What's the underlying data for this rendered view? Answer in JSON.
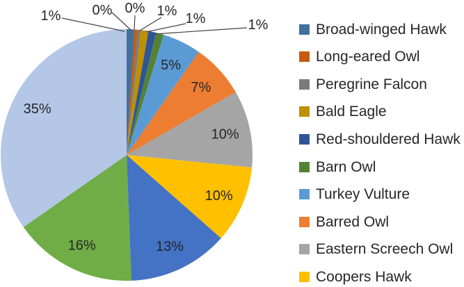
{
  "figure": {
    "background": "#FFFFFF",
    "title": ""
  },
  "chart_data": {
    "type": "pie",
    "title": "",
    "legend_position": "right",
    "data_labels": "percent",
    "label_text_color": "#262626",
    "leader_line_color": "#404040",
    "slices": [
      {
        "name": "Broad-winged Hawk",
        "label": "1%",
        "value": 1,
        "color": "#41719C"
      },
      {
        "name": "Long-eared Owl",
        "label": "0%",
        "value": 0,
        "color": "#C55A11"
      },
      {
        "name": "Peregrine Falcon",
        "label": "0%",
        "value": 0,
        "color": "#7B7B7B"
      },
      {
        "name": "Bald Eagle",
        "label": "1%",
        "value": 1,
        "color": "#BF9000"
      },
      {
        "name": "Red-shouldered Hawk",
        "label": "1%",
        "value": 1,
        "color": "#2F5597"
      },
      {
        "name": "Barn Owl",
        "label": "1%",
        "value": 1,
        "color": "#548235"
      },
      {
        "name": "Turkey Vulture",
        "label": "5%",
        "value": 5,
        "color": "#5B9BD5"
      },
      {
        "name": "Barred Owl",
        "label": "7%",
        "value": 7,
        "color": "#ED7D31"
      },
      {
        "name": "Eastern Screech Owl",
        "label": "10%",
        "value": 10,
        "color": "#A5A5A5"
      },
      {
        "name": "Coopers Hawk",
        "label": "10%",
        "value": 10,
        "color": "#FFC000"
      },
      {
        "name": "",
        "label": "13%",
        "value": 13,
        "color": "#4472C4"
      },
      {
        "name": "",
        "label": "16%",
        "value": 16,
        "color": "#70AD47"
      },
      {
        "name": "",
        "label": "35%",
        "value": 35,
        "color": "#B4C7E7"
      }
    ],
    "legend_entries": [
      "Broad-winged Hawk",
      "Long-eared Owl",
      "Peregrine Falcon",
      "Bald Eagle",
      "Red-shouldered Hawk",
      "Barn Owl",
      "Turkey Vulture",
      "Barred Owl",
      "Eastern Screech Owl",
      "Coopers Hawk"
    ]
  }
}
